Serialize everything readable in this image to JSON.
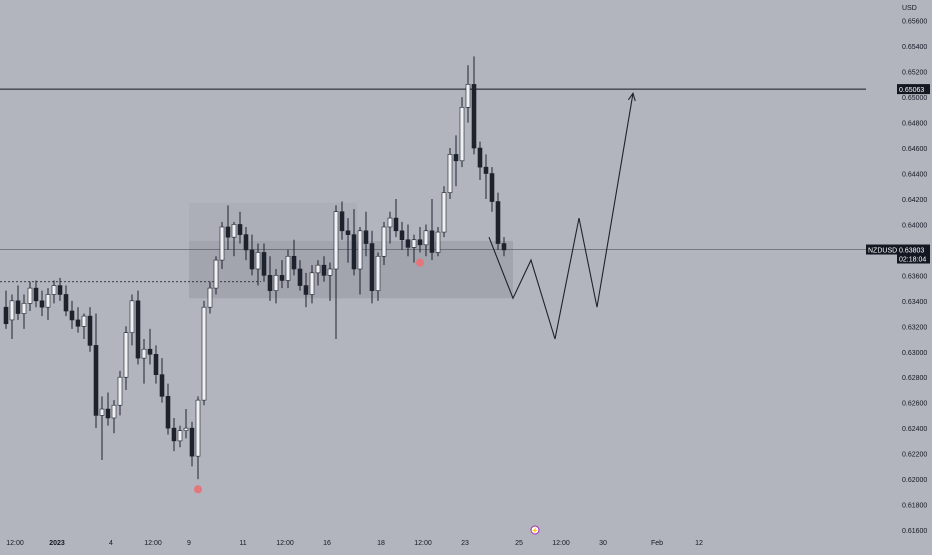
{
  "chart_data": {
    "type": "candlestick",
    "symbol": "NZDUSD",
    "currency": "USD",
    "ylim": [
      0.616,
      0.657
    ],
    "y_ticks": [
      "0.65600",
      "0.65400",
      "0.65200",
      "0.65000",
      "0.64800",
      "0.64600",
      "0.64400",
      "0.64200",
      "0.64000",
      "0.63800",
      "0.63600",
      "0.63400",
      "0.63200",
      "0.63000",
      "0.62800",
      "0.62600",
      "0.62400",
      "0.62200",
      "0.62000",
      "0.61800",
      "0.61600"
    ],
    "x_ticks": [
      {
        "label": "12:00",
        "bar": 2,
        "bold": false
      },
      {
        "label": "2023",
        "bar": 9,
        "bold": true
      },
      {
        "label": "4",
        "bar": 18,
        "bold": false
      },
      {
        "label": "12:00",
        "bar": 25,
        "bold": false
      },
      {
        "label": "9",
        "bar": 31,
        "bold": false
      },
      {
        "label": "11",
        "bar": 40,
        "bold": false
      },
      {
        "label": "12:00",
        "bar": 47,
        "bold": false
      },
      {
        "label": "16",
        "bar": 54,
        "bold": false
      },
      {
        "label": "18",
        "bar": 63,
        "bold": false
      },
      {
        "label": "12:00",
        "bar": 70,
        "bold": false
      },
      {
        "label": "23",
        "bar": 77,
        "bold": false
      },
      {
        "label": "25",
        "bar": 86,
        "bold": false
      },
      {
        "label": "12:00",
        "bar": 93,
        "bold": false
      },
      {
        "label": "30",
        "bar": 100,
        "bold": false
      },
      {
        "label": "Feb",
        "bar": 109,
        "bold": false
      },
      {
        "label": "12",
        "bar": 116,
        "bold": false
      }
    ],
    "candles": [
      [
        0.6335,
        0.6348,
        0.6318,
        0.6322
      ],
      [
        0.6325,
        0.6345,
        0.631,
        0.634
      ],
      [
        0.634,
        0.6352,
        0.6325,
        0.633
      ],
      [
        0.633,
        0.6345,
        0.6318,
        0.6338
      ],
      [
        0.6338,
        0.6355,
        0.6332,
        0.635
      ],
      [
        0.635,
        0.6356,
        0.6335,
        0.634
      ],
      [
        0.634,
        0.6348,
        0.6328,
        0.6335
      ],
      [
        0.6335,
        0.635,
        0.6325,
        0.6345
      ],
      [
        0.6345,
        0.6356,
        0.6338,
        0.6352
      ],
      [
        0.6352,
        0.6358,
        0.634,
        0.6345
      ],
      [
        0.6345,
        0.6352,
        0.6328,
        0.6332
      ],
      [
        0.6332,
        0.634,
        0.6318,
        0.6325
      ],
      [
        0.6325,
        0.6335,
        0.6315,
        0.632
      ],
      [
        0.632,
        0.633,
        0.631,
        0.6328
      ],
      [
        0.6328,
        0.6335,
        0.63,
        0.6305
      ],
      [
        0.6305,
        0.633,
        0.624,
        0.625
      ],
      [
        0.625,
        0.6265,
        0.6215,
        0.6255
      ],
      [
        0.6255,
        0.6268,
        0.6242,
        0.6248
      ],
      [
        0.6248,
        0.6262,
        0.6236,
        0.6258
      ],
      [
        0.6258,
        0.6285,
        0.625,
        0.628
      ],
      [
        0.628,
        0.632,
        0.627,
        0.6315
      ],
      [
        0.6315,
        0.6345,
        0.6305,
        0.634
      ],
      [
        0.634,
        0.6348,
        0.629,
        0.6295
      ],
      [
        0.6295,
        0.631,
        0.6275,
        0.6302
      ],
      [
        0.6302,
        0.6318,
        0.629,
        0.6298
      ],
      [
        0.6298,
        0.6305,
        0.6275,
        0.6282
      ],
      [
        0.6282,
        0.6295,
        0.626,
        0.6265
      ],
      [
        0.6265,
        0.6275,
        0.6235,
        0.624
      ],
      [
        0.624,
        0.6248,
        0.6222,
        0.623
      ],
      [
        0.623,
        0.6242,
        0.6225,
        0.6238
      ],
      [
        0.6238,
        0.6255,
        0.6232,
        0.624
      ],
      [
        0.624,
        0.6245,
        0.621,
        0.6218
      ],
      [
        0.6218,
        0.6265,
        0.62,
        0.6262
      ],
      [
        0.6262,
        0.634,
        0.6258,
        0.6335
      ],
      [
        0.6335,
        0.6355,
        0.633,
        0.635
      ],
      [
        0.635,
        0.6375,
        0.6345,
        0.6372
      ],
      [
        0.6372,
        0.6402,
        0.6365,
        0.6398
      ],
      [
        0.6398,
        0.6415,
        0.638,
        0.639
      ],
      [
        0.639,
        0.6402,
        0.6375,
        0.64
      ],
      [
        0.64,
        0.641,
        0.6385,
        0.6392
      ],
      [
        0.6392,
        0.6398,
        0.6372,
        0.638
      ],
      [
        0.638,
        0.6392,
        0.636,
        0.6365
      ],
      [
        0.6365,
        0.6385,
        0.6352,
        0.6378
      ],
      [
        0.6378,
        0.6385,
        0.6355,
        0.636
      ],
      [
        0.636,
        0.6375,
        0.634,
        0.6348
      ],
      [
        0.6348,
        0.6365,
        0.6338,
        0.636
      ],
      [
        0.636,
        0.6372,
        0.635,
        0.6356
      ],
      [
        0.6356,
        0.638,
        0.635,
        0.6375
      ],
      [
        0.6375,
        0.6388,
        0.636,
        0.6365
      ],
      [
        0.6365,
        0.6372,
        0.6348,
        0.6352
      ],
      [
        0.6352,
        0.6362,
        0.6335,
        0.6345
      ],
      [
        0.6345,
        0.6368,
        0.6338,
        0.6362
      ],
      [
        0.6362,
        0.6372,
        0.6352,
        0.6368
      ],
      [
        0.6368,
        0.6375,
        0.6355,
        0.636
      ],
      [
        0.636,
        0.637,
        0.634,
        0.6365
      ],
      [
        0.6365,
        0.6415,
        0.631,
        0.641
      ],
      [
        0.641,
        0.6418,
        0.6388,
        0.6395
      ],
      [
        0.6395,
        0.6405,
        0.637,
        0.6392
      ],
      [
        0.6392,
        0.6412,
        0.636,
        0.6365
      ],
      [
        0.6365,
        0.6398,
        0.6345,
        0.6395
      ],
      [
        0.6395,
        0.641,
        0.6375,
        0.6385
      ],
      [
        0.6385,
        0.6395,
        0.6338,
        0.6348
      ],
      [
        0.6348,
        0.6378,
        0.634,
        0.6375
      ],
      [
        0.6375,
        0.6402,
        0.6368,
        0.6398
      ],
      [
        0.6398,
        0.641,
        0.6385,
        0.6405
      ],
      [
        0.6405,
        0.642,
        0.639,
        0.6395
      ],
      [
        0.6395,
        0.6402,
        0.638,
        0.6388
      ],
      [
        0.6388,
        0.64,
        0.6375,
        0.6382
      ],
      [
        0.6382,
        0.6392,
        0.637,
        0.6388
      ],
      [
        0.6388,
        0.6398,
        0.6378,
        0.6384
      ],
      [
        0.6384,
        0.64,
        0.6375,
        0.6395
      ],
      [
        0.6395,
        0.642,
        0.6372,
        0.6378
      ],
      [
        0.6378,
        0.6398,
        0.6375,
        0.6394
      ],
      [
        0.6394,
        0.643,
        0.639,
        0.6425
      ],
      [
        0.6425,
        0.646,
        0.642,
        0.6455
      ],
      [
        0.6455,
        0.647,
        0.643,
        0.645
      ],
      [
        0.645,
        0.65,
        0.6445,
        0.6492
      ],
      [
        0.6492,
        0.6525,
        0.648,
        0.651
      ],
      [
        0.651,
        0.6532,
        0.6455,
        0.646
      ],
      [
        0.646,
        0.6465,
        0.6435,
        0.6445
      ],
      [
        0.6445,
        0.6455,
        0.642,
        0.644
      ],
      [
        0.644,
        0.6445,
        0.641,
        0.6418
      ],
      [
        0.6418,
        0.6425,
        0.638,
        0.6385
      ],
      [
        0.6385,
        0.639,
        0.6375,
        0.638
      ]
    ],
    "price_label": "0.65063",
    "price_level": 0.65063,
    "current_symbol": "NZDUSD",
    "current_price": "0.63803",
    "current_level": 0.63803,
    "countdown": "02:18:04",
    "dashed_level": 0.6355,
    "zones": [
      {
        "bar_from": 31,
        "bar_to": 59,
        "low": 0.6387,
        "high": 0.6417
      },
      {
        "bar_from": 31,
        "bar_to": 85,
        "low": 0.6342,
        "high": 0.6387
      }
    ],
    "projection_path": [
      [
        81,
        0.639
      ],
      [
        85,
        0.6342
      ],
      [
        88,
        0.6372
      ],
      [
        92,
        0.631
      ],
      [
        96,
        0.6405
      ],
      [
        99,
        0.6335
      ],
      [
        105,
        0.6503
      ]
    ],
    "markers": [
      {
        "bar": 32,
        "price": 0.6192
      },
      {
        "bar": 69,
        "price": 0.637
      }
    ]
  }
}
